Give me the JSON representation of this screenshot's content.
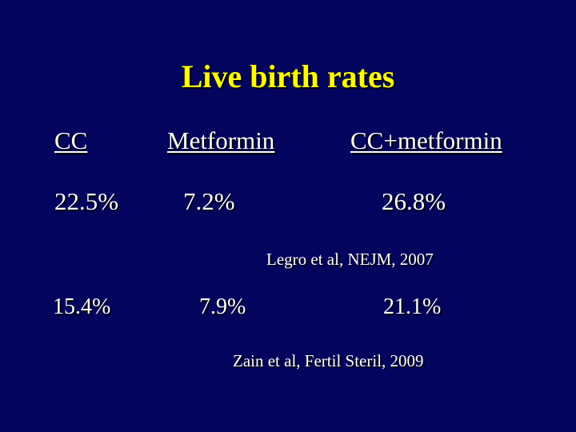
{
  "slide": {
    "title": "Live birth rates",
    "headers": [
      "CC",
      "Metformin",
      "CC+metformin"
    ],
    "study1": {
      "values": [
        "22.5%",
        "7.2%",
        "26.8%"
      ],
      "citation": "Legro et al, NEJM, 2007"
    },
    "study2": {
      "values": [
        "15.4%",
        "7.9%",
        "21.1%"
      ],
      "citation": "Zain et al, Fertil Steril, 2009"
    },
    "colors": {
      "background": "#02045e",
      "title": "#ffff00",
      "text": "#ffffff"
    }
  }
}
